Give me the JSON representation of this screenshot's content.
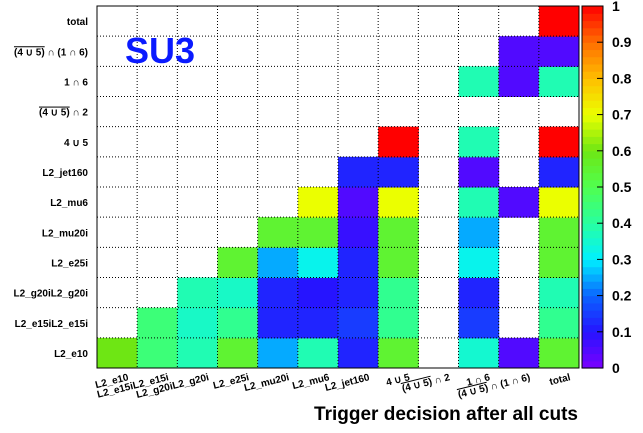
{
  "chart_data": {
    "type": "heatmap",
    "annotation": "SU3",
    "xlabel": "Trigger decision after all cuts",
    "ylabel": "",
    "x_categories": [
      "L2_e10",
      "L2_e15iL2_e15i",
      "L2_g20iL2_g20i",
      "L2_e25i",
      "L2_mu20i",
      "L2_mu6",
      "L2_jet160",
      "4 ∪ 5",
      "(4 ∪ 5) ∩ 2",
      "1 ∩ 6",
      "(4 ∪ 5) ∩ (1 ∩ 6)",
      "total"
    ],
    "x_tick_parts": [
      {
        "main": "L2_e10"
      },
      {
        "main": "L2_e15iL2_e15i"
      },
      {
        "main": "L2_g20iL2_g20i"
      },
      {
        "main": "L2_e25i"
      },
      {
        "main": "L2_mu20i"
      },
      {
        "main": "L2_mu6"
      },
      {
        "main": "L2_jet160"
      },
      {
        "main": "4 ∪ 5"
      },
      {
        "over": "(4 ∪ 5)",
        "rest": " ∩ 2"
      },
      {
        "main": "1 ∩ 6"
      },
      {
        "over": "(4 ∪ 5)",
        "rest": " ∩ (1 ∩ 6)"
      },
      {
        "main": "total"
      }
    ],
    "y_categories": [
      "L2_e10",
      "L2_e15iL2_e15i",
      "L2_g20iL2_g20i",
      "L2_e25i",
      "L2_mu20i",
      "L2_mu6",
      "L2_jet160",
      "4 ∪ 5",
      "(4 ∪ 5) ∩ 2",
      "1 ∩ 6",
      "(4 ∪ 5) ∩ (1 ∩ 6)",
      "total"
    ],
    "y_tick_parts": [
      {
        "main": "L2_e10"
      },
      {
        "main": "L2_e15iL2_e15i"
      },
      {
        "main": "L2_g20iL2_g20i"
      },
      {
        "main": "L2_e25i"
      },
      {
        "main": "L2_mu20i"
      },
      {
        "main": "L2_mu6"
      },
      {
        "main": "L2_jet160"
      },
      {
        "main": "4 ∪ 5"
      },
      {
        "over": "(4 ∪ 5)",
        "rest": " ∩ 2"
      },
      {
        "main": "1 ∩ 6"
      },
      {
        "over": "(4 ∪ 5)",
        "rest": " ∩ (1 ∩ 6)"
      },
      {
        "main": "total"
      }
    ],
    "values": [
      [
        0.6,
        0.45,
        0.38,
        0.55,
        0.25,
        0.38,
        0.12,
        0.55,
        null,
        0.35,
        0.05,
        0.55
      ],
      [
        null,
        0.45,
        0.36,
        0.42,
        0.12,
        0.12,
        0.15,
        0.42,
        null,
        0.15,
        null,
        0.42
      ],
      [
        null,
        null,
        0.38,
        0.36,
        0.12,
        0.1,
        0.12,
        0.42,
        null,
        0.12,
        null,
        0.38
      ],
      [
        null,
        null,
        null,
        0.55,
        0.25,
        0.32,
        0.12,
        0.55,
        null,
        0.32,
        null,
        0.55
      ],
      [
        null,
        null,
        null,
        null,
        0.55,
        0.55,
        0.08,
        0.55,
        null,
        0.25,
        null,
        0.55
      ],
      [
        null,
        null,
        null,
        null,
        null,
        0.7,
        0.05,
        0.7,
        null,
        0.38,
        0.05,
        0.7
      ],
      [
        null,
        null,
        null,
        null,
        null,
        null,
        0.12,
        0.12,
        null,
        0.05,
        null,
        0.12
      ],
      [
        null,
        null,
        null,
        null,
        null,
        null,
        null,
        1.0,
        null,
        0.38,
        null,
        1.0
      ],
      [
        null,
        null,
        null,
        null,
        null,
        null,
        null,
        null,
        null,
        null,
        null,
        null
      ],
      [
        null,
        null,
        null,
        null,
        null,
        null,
        null,
        null,
        null,
        0.38,
        0.05,
        0.38
      ],
      [
        null,
        null,
        null,
        null,
        null,
        null,
        null,
        null,
        null,
        null,
        0.05,
        0.05
      ],
      [
        null,
        null,
        null,
        null,
        null,
        null,
        null,
        null,
        null,
        null,
        null,
        1.0
      ]
    ],
    "zlim": [
      0,
      1
    ],
    "z_ticks": [
      "0",
      "0.1",
      "0.2",
      "0.3",
      "0.4",
      "0.5",
      "0.6",
      "0.7",
      "0.8",
      "0.9",
      "1"
    ],
    "grid": true,
    "colorbar": "right"
  }
}
